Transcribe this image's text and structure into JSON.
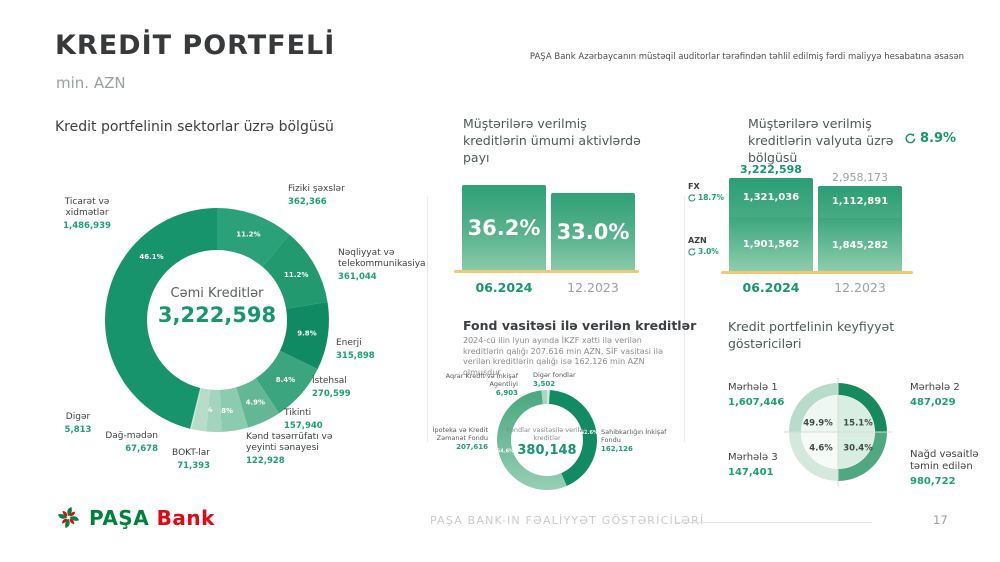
{
  "slide": {
    "title": "KREDİT PORTFELİ",
    "unit": "min. AZN",
    "note": "PAŞA Bank Azərbaycanın müstəqil auditorlar tərəfindən təhlil edilmiş fərdi maliyyə hesabatına əsasən"
  },
  "footer": {
    "brand_green": "PAŞA",
    "brand_red": "Bank",
    "caption": "PAŞA BANK-IN FƏALİYYƏT GÖSTƏRİCİLƏRİ",
    "page": "17"
  },
  "colors": {
    "accent_green": "#17966f",
    "value_green": "#1ea077",
    "baseline_yellow": "#f4c873",
    "muted_gray": "#9aa3a0",
    "brand_green": "#00813c",
    "brand_red": "#e30613"
  },
  "chart_data": [
    {
      "id": "sector_donut",
      "type": "donut",
      "title": "Kredit portfelinin sektorlar üzrə bölgüsü",
      "center_label": "Cəmi Kreditlər",
      "center_value": "3,222,598",
      "legend_position": "around",
      "segments": [
        {
          "label": "Fiziki şəxslər",
          "value": "362,366",
          "pct": 11.2,
          "color": "#2ba17a"
        },
        {
          "label": "Nəqliyyat və telekommunikasiya",
          "value": "361,044",
          "pct": 11.2,
          "color": "#23996f"
        },
        {
          "label": "Enerji",
          "value": "315,898",
          "pct": 9.8,
          "color": "#108a63"
        },
        {
          "label": "İstehsal",
          "value": "270,599",
          "pct": 8.4,
          "color": "#3aa57e"
        },
        {
          "label": "Tikinti",
          "value": "157,940",
          "pct": 4.9,
          "color": "#63b795"
        },
        {
          "label": "Kənd təsərrüfatı və yeyinti sənayesi",
          "value": "122,928",
          "pct": 3.8,
          "color": "#8accad"
        },
        {
          "label": "BOKT-lar",
          "value": "71,393",
          "pct": 2.2,
          "color": "#a3d4bd"
        },
        {
          "label": "Dağ-mədən",
          "value": "67,678",
          "pct": 2.1,
          "color": "#b7ddca"
        },
        {
          "label": "Digər",
          "value": "5,813",
          "pct": 0.2,
          "color": "#cfeade"
        },
        {
          "label": "Ticarət və xidmətlər",
          "value": "1,486,939",
          "pct": 46.1,
          "color": "#18946d"
        }
      ]
    },
    {
      "id": "assets_share",
      "type": "bar",
      "title": "Müştərilərə verilmiş kreditlərin ümumi aktivlərdə payı",
      "categories": [
        "06.2024",
        "12.2023"
      ],
      "values": [
        36.2,
        33.0
      ],
      "value_labels": [
        "36.2%",
        "33.0%"
      ],
      "ylim": [
        0,
        40
      ],
      "grid": false
    },
    {
      "id": "currency_breakdown",
      "type": "bar",
      "stacked": true,
      "title": "Müştərilərə verilmiş kreditlərin valyuta üzrə bölgüsü",
      "change_badge": "8.9%",
      "categories": [
        "06.2024",
        "12.2023"
      ],
      "totals": [
        3222598,
        2958173
      ],
      "total_labels": [
        "3,222,598",
        "2,958,173"
      ],
      "series": [
        {
          "name": "FX",
          "change": "18.7%",
          "values": [
            1321036,
            1112891
          ],
          "labels": [
            "1,321,036",
            "1,112,891"
          ]
        },
        {
          "name": "AZN",
          "change": "3.0%",
          "values": [
            1901562,
            1845282
          ],
          "labels": [
            "1,901,562",
            "1,845,282"
          ]
        }
      ],
      "grid": false
    },
    {
      "id": "fund_loans",
      "type": "donut",
      "title": "Fond vasitəsi ilə verilən kreditlər",
      "description": "2024-cü ilin iyun ayında İKZF xətti ilə verilən kreditlərin qalığı 207.616 min AZN, SİF vasitəsi ilə verilən kreditlərin qalığı isə 162.126 min AZN olmuşdur",
      "center_label": "Fondlar vasitəsilə verilən kreditlər",
      "center_value": "380,148",
      "segments": [
        {
          "label": "Digər fondlar",
          "value": "3,502",
          "pct": 0.9,
          "color": "#cfeade"
        },
        {
          "label": "Sahibkarlığın İnkişaf Fondu",
          "value": "162,126",
          "pct": 42.6,
          "color": "#128a63"
        },
        {
          "label": "İpoteka və Kredit Zəmanət Fondu",
          "value": "207,616",
          "pct": 54.6,
          "color": "#48a87f",
          "color2": "#98d0b5"
        },
        {
          "label": "Aqrar Kredit və İnkişaf Agentliyi",
          "value": "6,903",
          "pct": 1.8,
          "color": "#a9d7c0"
        }
      ]
    },
    {
      "id": "quality",
      "type": "pie",
      "title": "Kredit portfelinin keyfiyyət göstəriciləri",
      "quadrants": [
        {
          "label": "Mərhələ 1",
          "value": "1,607,446",
          "pct": "49.9%",
          "position": "top-left",
          "ring_color": "#b7dcca",
          "inner_color": "#eff7f2"
        },
        {
          "label": "Mərhələ 2",
          "value": "487,029",
          "pct": "15.1%",
          "position": "top-right",
          "ring_color": "#17895e",
          "inner_color": "#d9eee3"
        },
        {
          "label": "Mərhələ 3",
          "value": "147,401",
          "pct": "4.6%",
          "position": "bottom-left",
          "ring_color": "#d2e9dc",
          "inner_color": "#f6fbf8"
        },
        {
          "label": "Nağd vəsaitlə təmin edilən",
          "value": "980,722",
          "pct": "30.4%",
          "position": "bottom-right",
          "ring_color": "#4fa87f",
          "inner_color": "#d9eee3"
        }
      ]
    }
  ]
}
